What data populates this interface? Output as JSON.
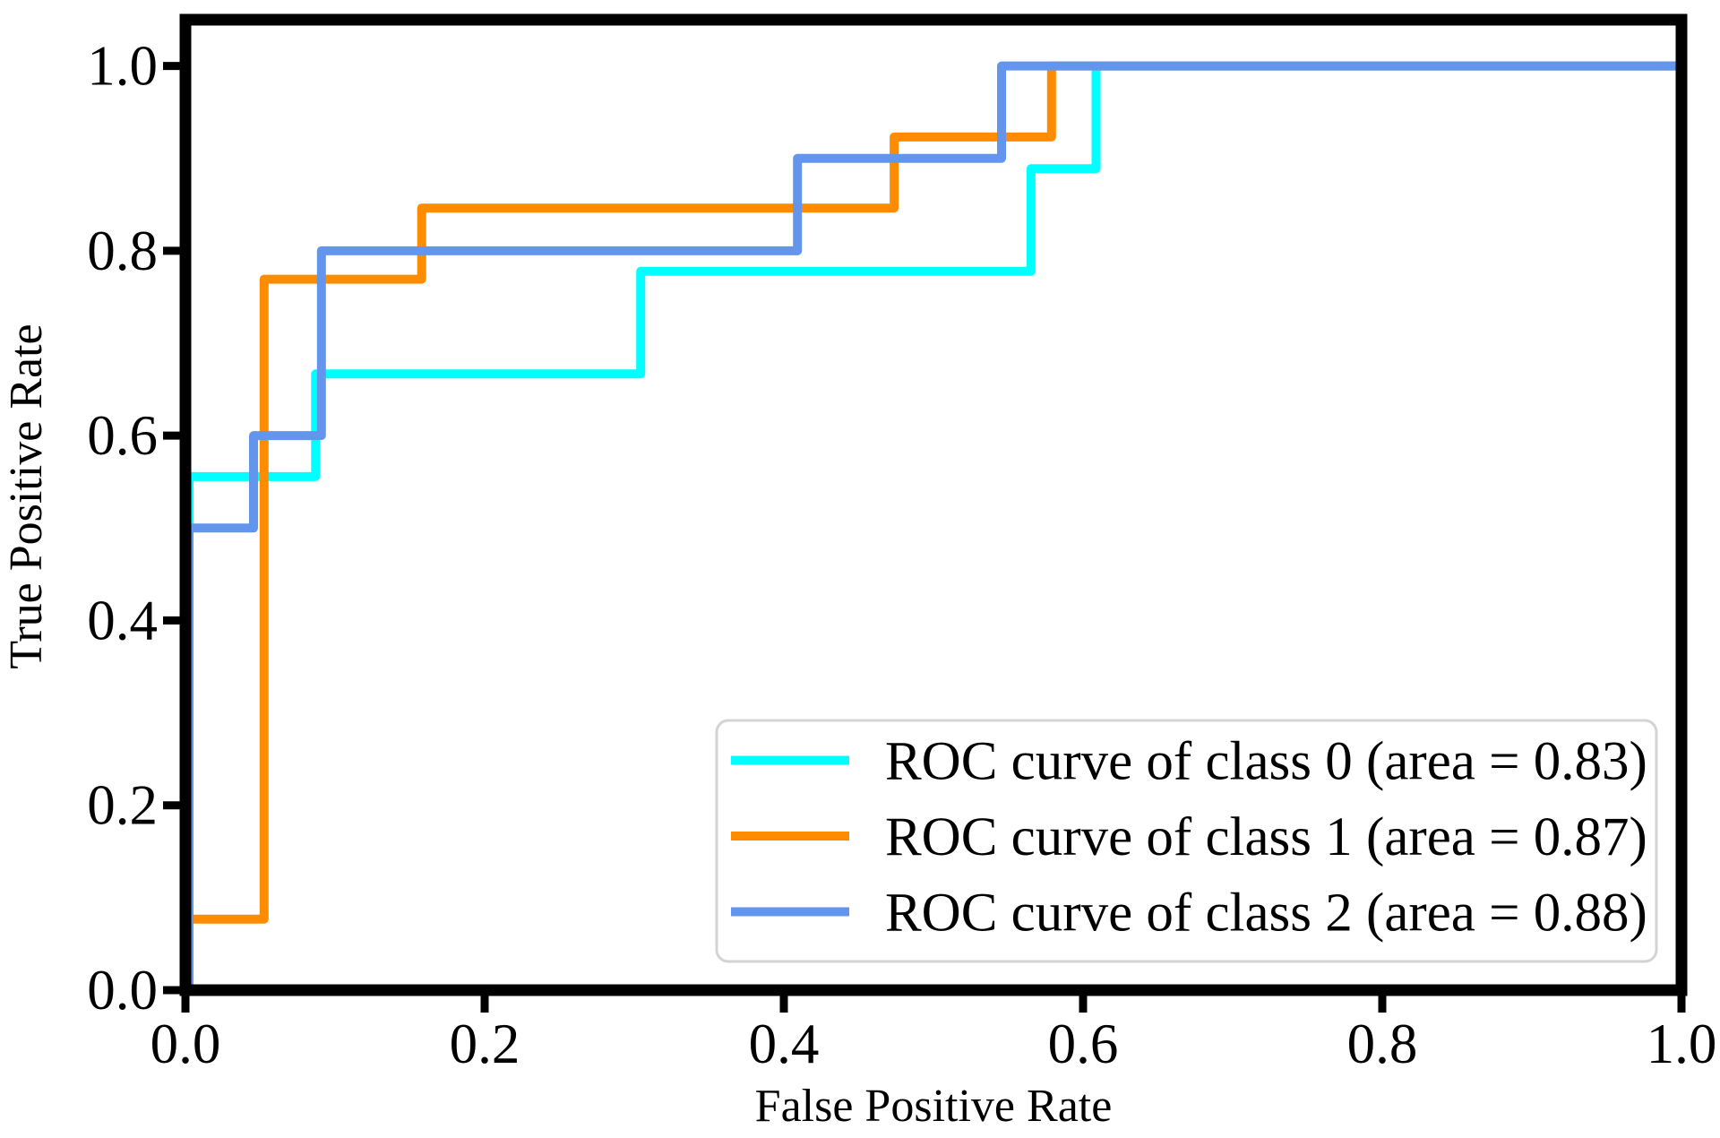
{
  "figure": {
    "background": "#ffffff",
    "axis_color": "#000000"
  },
  "chart_data": {
    "type": "line",
    "variant": "roc-step-curves",
    "title": "",
    "xlabel": "False Positive Rate",
    "ylabel": "True Positive Rate",
    "xlim": [
      0.0,
      1.0
    ],
    "ylim": [
      0.0,
      1.05
    ],
    "grid": false,
    "xticks": {
      "values": [
        0.0,
        0.2,
        0.4,
        0.6,
        0.8,
        1.0
      ],
      "labels": [
        "0.0",
        "0.2",
        "0.4",
        "0.6",
        "0.8",
        "1.0"
      ]
    },
    "yticks": {
      "values": [
        0.0,
        0.2,
        0.4,
        0.6,
        0.8,
        1.0
      ],
      "labels": [
        "0.0",
        "0.2",
        "0.4",
        "0.6",
        "0.8",
        "1.0"
      ]
    },
    "legend": {
      "position": "lower right",
      "border_color": "#d4d4d4",
      "background": "#ffffff"
    },
    "series": [
      {
        "name": "ROC curve of class 0 (area = 0.83)",
        "class_id": "0",
        "auc": 0.83,
        "color": "#00FFFF",
        "fpr": [
          0,
          0,
          0.087,
          0.087,
          0.3043,
          0.3043,
          0.5652,
          0.5652,
          0.6087,
          0.6087,
          1.0
        ],
        "tpr": [
          0,
          0.5556,
          0.5556,
          0.6667,
          0.6667,
          0.7778,
          0.7778,
          0.8889,
          0.8889,
          1.0,
          1.0
        ]
      },
      {
        "name": "ROC curve of class 1 (area = 0.87)",
        "class_id": "1",
        "auc": 0.87,
        "color": "#FF8C00",
        "fpr": [
          0,
          0,
          0.0526,
          0.0526,
          0.1579,
          0.1579,
          0.4737,
          0.4737,
          0.5789,
          0.5789,
          1.0
        ],
        "tpr": [
          0,
          0.0769,
          0.0769,
          0.7692,
          0.7692,
          0.8462,
          0.8462,
          0.9231,
          0.9231,
          1.0,
          1.0
        ]
      },
      {
        "name": "ROC curve of class 2 (area = 0.88)",
        "class_id": "2",
        "auc": 0.88,
        "color": "#6495ED",
        "fpr": [
          0,
          0,
          0.0455,
          0.0455,
          0.0909,
          0.0909,
          0.4091,
          0.4091,
          0.5455,
          0.5455,
          1.0
        ],
        "tpr": [
          0,
          0.5,
          0.5,
          0.6,
          0.6,
          0.8,
          0.8,
          0.9,
          0.9,
          1.0,
          1.0
        ]
      }
    ]
  }
}
